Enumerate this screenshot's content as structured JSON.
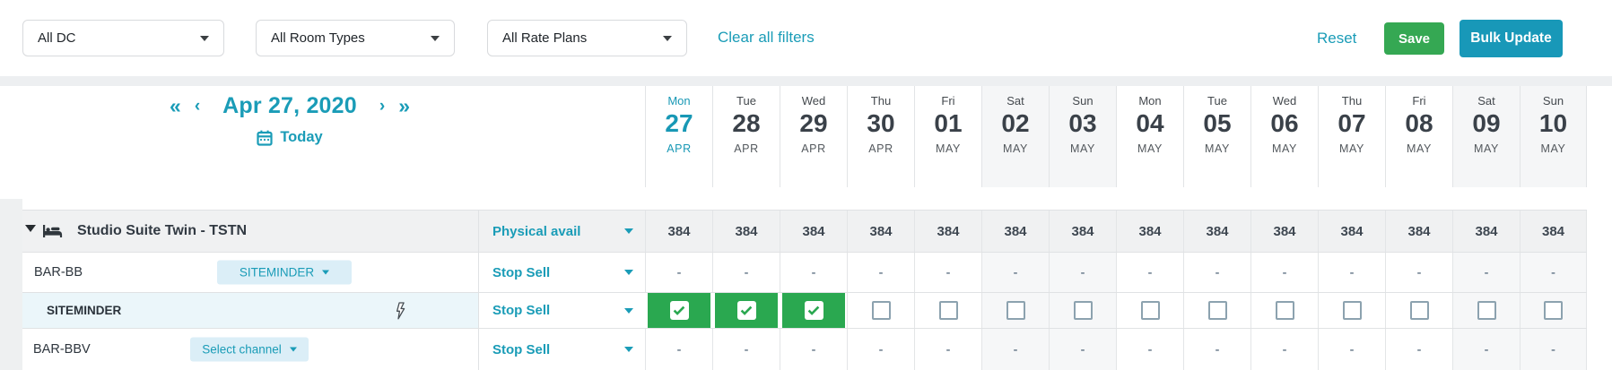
{
  "toolbar": {
    "filters": [
      {
        "label": "All DC"
      },
      {
        "label": "All Room Types"
      },
      {
        "label": "All Rate Plans"
      }
    ],
    "clear_all_label": "Clear all filters",
    "reset_label": "Reset",
    "save_label": "Save",
    "bulk_update_label": "Bulk Update"
  },
  "date_nav": {
    "first_label": "«",
    "prev_label": "‹",
    "title": "Apr 27, 2020",
    "next_label": "›",
    "last_label": "»",
    "today_label": "Today"
  },
  "date_columns": [
    {
      "day": "Mon",
      "date": "27",
      "month": "APR",
      "active": true,
      "weekend": false
    },
    {
      "day": "Tue",
      "date": "28",
      "month": "APR",
      "active": false,
      "weekend": false
    },
    {
      "day": "Wed",
      "date": "29",
      "month": "APR",
      "active": false,
      "weekend": false
    },
    {
      "day": "Thu",
      "date": "30",
      "month": "APR",
      "active": false,
      "weekend": false
    },
    {
      "day": "Fri",
      "date": "01",
      "month": "MAY",
      "active": false,
      "weekend": false
    },
    {
      "day": "Sat",
      "date": "02",
      "month": "MAY",
      "active": false,
      "weekend": true
    },
    {
      "day": "Sun",
      "date": "03",
      "month": "MAY",
      "active": false,
      "weekend": true
    },
    {
      "day": "Mon",
      "date": "04",
      "month": "MAY",
      "active": false,
      "weekend": false
    },
    {
      "day": "Tue",
      "date": "05",
      "month": "MAY",
      "active": false,
      "weekend": false
    },
    {
      "day": "Wed",
      "date": "06",
      "month": "MAY",
      "active": false,
      "weekend": false
    },
    {
      "day": "Thu",
      "date": "07",
      "month": "MAY",
      "active": false,
      "weekend": false
    },
    {
      "day": "Fri",
      "date": "08",
      "month": "MAY",
      "active": false,
      "weekend": false
    },
    {
      "day": "Sat",
      "date": "09",
      "month": "MAY",
      "active": false,
      "weekend": true
    },
    {
      "day": "Sun",
      "date": "10",
      "month": "MAY",
      "active": false,
      "weekend": true
    }
  ],
  "grid": {
    "room_type_row": {
      "name": "Studio Suite Twin - TSTN",
      "selector_label": "Physical avail",
      "values": [
        "384",
        "384",
        "384",
        "384",
        "384",
        "384",
        "384",
        "384",
        "384",
        "384",
        "384",
        "384",
        "384",
        "384"
      ]
    },
    "rate_rows": [
      {
        "name": "BAR-BB",
        "channel_label": "SITEMINDER",
        "selector_label": "Stop Sell",
        "cell_type": "dash",
        "values": [
          "-",
          "-",
          "-",
          "-",
          "-",
          "-",
          "-",
          "-",
          "-",
          "-",
          "-",
          "-",
          "-",
          "-"
        ]
      },
      {
        "name": "SITEMINDER",
        "channel_label": "",
        "selector_label": "Stop Sell",
        "cell_type": "checkbox",
        "has_lightning": true,
        "checked": [
          true,
          true,
          true,
          false,
          false,
          false,
          false,
          false,
          false,
          false,
          false,
          false,
          false,
          false
        ]
      },
      {
        "name": "BAR-BBV",
        "channel_label": "Select channel",
        "selector_label": "Stop Sell",
        "cell_type": "dash",
        "values": [
          "-",
          "-",
          "-",
          "-",
          "-",
          "-",
          "-",
          "-",
          "-",
          "-",
          "-",
          "-",
          "-",
          "-"
        ]
      }
    ]
  },
  "colors": {
    "accent_teal": "#1a9cb7",
    "active_date_teal": "#1898b5",
    "save_green": "#35a853",
    "bulk_update_teal": "#1898b8",
    "checked_green": "#2aa850",
    "channel_pill_bg": "#dbeef7",
    "row_highlight_blue": "#ebf6fa",
    "room_row_gray": "#f0f1f2",
    "weekend_gray": "#f6f7f8"
  }
}
